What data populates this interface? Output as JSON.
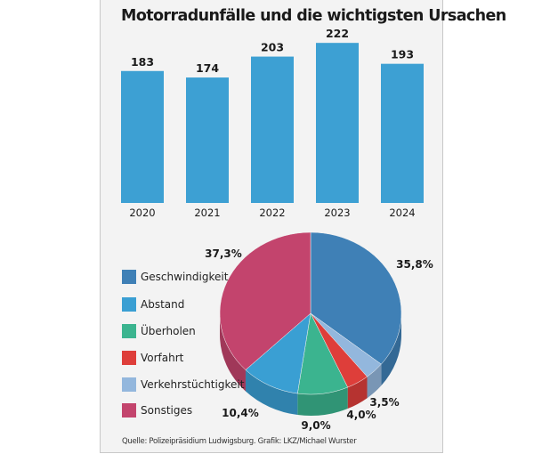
{
  "chart_data": [
    {
      "type": "bar",
      "title": "Motorradunfälle und die wichtigsten Ursachen",
      "categories": [
        "2020",
        "2021",
        "2022",
        "2023",
        "2024"
      ],
      "values": [
        183,
        174,
        203,
        222,
        193
      ],
      "bar_color": "#3da0d3",
      "grid": false
    },
    {
      "type": "pie",
      "style": "3d",
      "slices": [
        {
          "label": "Geschwindigkeit",
          "value": 35.8,
          "display": "35,8%",
          "color": "#3f80b6"
        },
        {
          "label": "Verkehrstüchtigkeit",
          "value": 3.5,
          "display": "3,5%",
          "color": "#93b7dd"
        },
        {
          "label": "Vorfahrt",
          "value": 4.0,
          "display": "4,0%",
          "color": "#de3e3a"
        },
        {
          "label": "Überholen",
          "value": 9.0,
          "display": "9,0%",
          "color": "#3bb48f"
        },
        {
          "label": "Abstand",
          "value": 10.4,
          "display": "10,4%",
          "color": "#3a9fd3"
        },
        {
          "label": "Sonstiges",
          "value": 37.3,
          "display": "37,3%",
          "color": "#c3446d"
        }
      ],
      "legend_order": [
        "Geschwindigkeit",
        "Abstand",
        "Überholen",
        "Vorfahrt",
        "Verkehrstüchtigkeit",
        "Sonstiges"
      ],
      "legend": "left"
    }
  ],
  "source": "Quelle: Polizeipräsidium Ludwigsburg. Grafik: LKZ/Michael Wurster"
}
